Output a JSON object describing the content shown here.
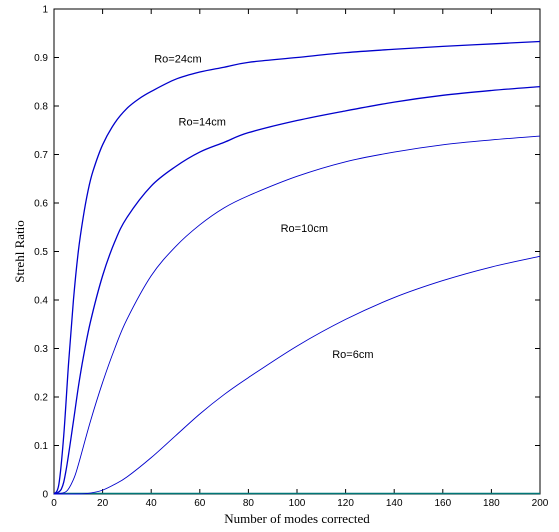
{
  "chart_data": {
    "type": "line",
    "title": "",
    "xlabel": "Number of modes  corrected",
    "ylabel": "Strehl  Ratio",
    "xlim": [
      0,
      200
    ],
    "ylim": [
      0,
      1
    ],
    "xticks": [
      "0",
      "20",
      "40",
      "60",
      "80",
      "100",
      "120",
      "140",
      "160",
      "180",
      "200"
    ],
    "yticks": [
      "0",
      "0.1",
      "0.2",
      "0.3",
      "0.4",
      "0.5",
      "0.6",
      "0.7",
      "0.8",
      "0.9",
      "1"
    ],
    "grid": false,
    "legend": "none",
    "line_color": "#0000cc",
    "baseline_color": "#007777",
    "series": [
      {
        "annotation": "Ro=24cm",
        "x": [
          0,
          2,
          4,
          6,
          8,
          10,
          12,
          14,
          16,
          20,
          25,
          30,
          35,
          40,
          50,
          60,
          70,
          80,
          100,
          120,
          140,
          160,
          180,
          200
        ],
        "y": [
          0,
          0.02,
          0.12,
          0.27,
          0.4,
          0.5,
          0.57,
          0.625,
          0.665,
          0.72,
          0.765,
          0.795,
          0.815,
          0.83,
          0.855,
          0.87,
          0.88,
          0.89,
          0.9,
          0.91,
          0.917,
          0.923,
          0.928,
          0.933
        ]
      },
      {
        "annotation": "Ro=14cm",
        "x": [
          0,
          3,
          5,
          8,
          10,
          12,
          15,
          20,
          25,
          30,
          40,
          50,
          60,
          70,
          80,
          100,
          120,
          140,
          160,
          180,
          200
        ],
        "y": [
          0,
          0.01,
          0.05,
          0.15,
          0.22,
          0.28,
          0.355,
          0.45,
          0.52,
          0.57,
          0.635,
          0.675,
          0.705,
          0.725,
          0.745,
          0.77,
          0.79,
          0.808,
          0.822,
          0.832,
          0.84
        ]
      },
      {
        "annotation": "Ro=10cm",
        "x": [
          0,
          5,
          8,
          10,
          15,
          20,
          25,
          30,
          40,
          50,
          60,
          70,
          80,
          100,
          120,
          140,
          160,
          180,
          200
        ],
        "y": [
          0,
          0.005,
          0.03,
          0.06,
          0.15,
          0.23,
          0.3,
          0.36,
          0.45,
          0.51,
          0.555,
          0.59,
          0.615,
          0.655,
          0.685,
          0.705,
          0.72,
          0.73,
          0.738
        ]
      },
      {
        "annotation": "Ro=6cm",
        "x": [
          0,
          10,
          15,
          20,
          25,
          30,
          40,
          50,
          60,
          70,
          80,
          100,
          120,
          140,
          160,
          180,
          200
        ],
        "y": [
          0,
          0.0,
          0.002,
          0.008,
          0.02,
          0.035,
          0.075,
          0.12,
          0.165,
          0.205,
          0.24,
          0.305,
          0.36,
          0.405,
          0.44,
          0.468,
          0.49
        ]
      }
    ],
    "annotations": [
      {
        "text": "Ro=24cm",
        "x": 51,
        "y": 0.89
      },
      {
        "text": "Ro=14cm",
        "x": 61,
        "y": 0.76
      },
      {
        "text": "Ro=10cm",
        "x": 103,
        "y": 0.54
      },
      {
        "text": "Ro=6cm",
        "x": 123,
        "y": 0.28
      }
    ]
  }
}
